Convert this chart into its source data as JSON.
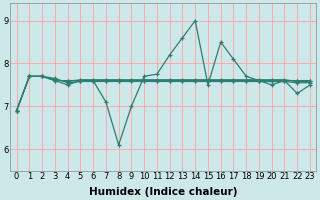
{
  "xlabel": "Humidex (Indice chaleur)",
  "background_color": "#cce8e8",
  "grid_color": "#ffaaaa",
  "line_color": "#2e7d72",
  "x": [
    0,
    1,
    2,
    3,
    4,
    5,
    6,
    7,
    8,
    9,
    10,
    11,
    12,
    13,
    14,
    15,
    16,
    17,
    18,
    19,
    20,
    21,
    22,
    23
  ],
  "lines": [
    [
      6.9,
      7.7,
      7.7,
      7.6,
      7.5,
      7.6,
      7.6,
      7.1,
      6.1,
      7.0,
      7.7,
      7.75,
      8.2,
      8.6,
      9.0,
      7.5,
      8.5,
      8.1,
      7.7,
      7.6,
      7.5,
      7.6,
      7.3,
      7.5
    ],
    [
      6.9,
      7.7,
      7.7,
      7.6,
      7.6,
      7.6,
      7.6,
      7.6,
      7.6,
      7.6,
      7.6,
      7.6,
      7.6,
      7.6,
      7.6,
      7.6,
      7.6,
      7.6,
      7.6,
      7.6,
      7.6,
      7.6,
      7.6,
      7.6
    ],
    [
      6.9,
      7.7,
      7.7,
      7.62,
      7.58,
      7.62,
      7.62,
      7.62,
      7.62,
      7.62,
      7.62,
      7.62,
      7.62,
      7.62,
      7.62,
      7.62,
      7.62,
      7.62,
      7.62,
      7.62,
      7.62,
      7.62,
      7.58,
      7.58
    ],
    [
      6.9,
      7.7,
      7.7,
      7.65,
      7.55,
      7.58,
      7.58,
      7.58,
      7.58,
      7.58,
      7.58,
      7.58,
      7.58,
      7.58,
      7.58,
      7.58,
      7.58,
      7.58,
      7.58,
      7.58,
      7.58,
      7.58,
      7.55,
      7.55
    ]
  ],
  "ylim": [
    5.5,
    9.4
  ],
  "yticks": [
    6,
    7,
    8,
    9
  ],
  "xticks": [
    0,
    1,
    2,
    3,
    4,
    5,
    6,
    7,
    8,
    9,
    10,
    11,
    12,
    13,
    14,
    15,
    16,
    17,
    18,
    19,
    20,
    21,
    22,
    23
  ],
  "tick_fontsize": 6,
  "label_fontsize": 7.5
}
